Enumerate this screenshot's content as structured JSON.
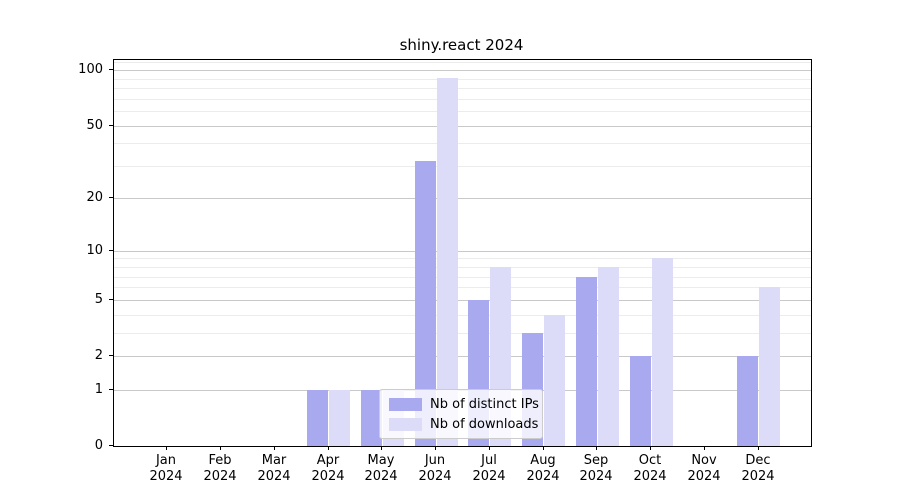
{
  "chart_data": {
    "type": "bar",
    "title": "shiny.react 2024",
    "categories": [
      "Jan",
      "Feb",
      "Mar",
      "Apr",
      "May",
      "Jun",
      "Jul",
      "Aug",
      "Sep",
      "Oct",
      "Nov",
      "Dec"
    ],
    "x_year_label": "2024",
    "series": [
      {
        "name": "Nb of distinct IPs",
        "color": "#a9a9f0",
        "values": [
          0,
          0,
          0,
          1,
          1,
          32,
          5,
          3,
          7,
          2,
          0,
          2
        ]
      },
      {
        "name": "Nb of downloads",
        "color": "#dcdcf8",
        "values": [
          0,
          0,
          0,
          1,
          1,
          91,
          8,
          4,
          8,
          9,
          0,
          6
        ]
      }
    ],
    "xlabel": "",
    "ylabel": "",
    "yscale": "log1p",
    "ylim": [
      0,
      113
    ],
    "y_ticks": [
      0,
      1,
      2,
      5,
      10,
      20,
      50,
      100
    ],
    "y_minor_ticks": [
      3,
      4,
      6,
      7,
      8,
      9,
      30,
      40,
      60,
      70,
      80,
      90,
      110
    ],
    "grid": "major and minor horizontal gridlines on",
    "legend_position": "lower center"
  },
  "colors": {
    "background": "#ffffff",
    "frame": "#000000",
    "grid_major": "#c9c9c9",
    "grid_minor": "#ececec",
    "legend_border": "#cccccc",
    "text": "#000000"
  }
}
